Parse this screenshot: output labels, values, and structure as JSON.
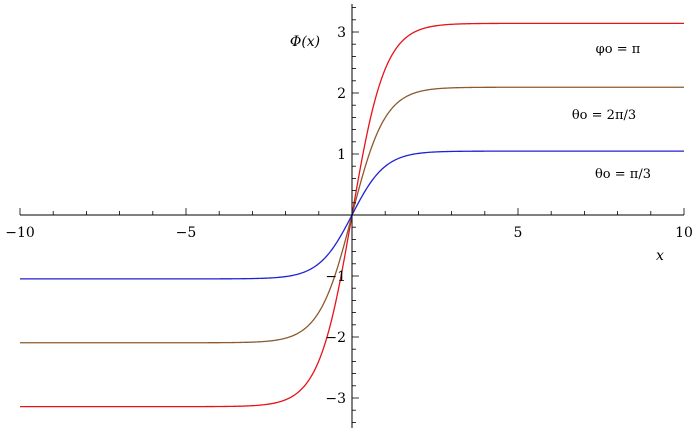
{
  "chart_data": {
    "type": "line",
    "title": "",
    "xlabel": "x",
    "ylabel": "Φ(x)",
    "xlim": [
      -10,
      10
    ],
    "ylim": [
      -3.5,
      3.5
    ],
    "x_ticks": [
      -10,
      -5,
      5,
      10
    ],
    "x_tick_labels": [
      "−10",
      "−5",
      "5",
      "10"
    ],
    "y_ticks": [
      -3,
      -2,
      -1,
      1,
      2,
      3
    ],
    "y_tick_labels": [
      "−3",
      "−2",
      "−1",
      "1",
      "2",
      "3"
    ],
    "grid": false,
    "legend": "none",
    "series": [
      {
        "name": "φo = π",
        "color": "#e8131a",
        "amplitude": 3.1416,
        "k": 1.0,
        "x": [
          -10,
          -3,
          -2,
          -1.5,
          -1,
          -0.5,
          0,
          0.5,
          1,
          1.5,
          2,
          3,
          10
        ],
        "y": [
          -3.14,
          -3.13,
          -3.09,
          -3.03,
          -2.86,
          -2.14,
          0,
          2.14,
          2.86,
          3.03,
          3.09,
          3.13,
          3.14
        ]
      },
      {
        "name": "θo = 2π/3",
        "color": "#8c5a2e",
        "amplitude": 2.0944,
        "k": 1.0,
        "x": [
          -10,
          -3,
          -2,
          -1,
          -0.5,
          0,
          0.5,
          1,
          2,
          3,
          10
        ],
        "y": [
          -2.09,
          -2.09,
          -2.06,
          -1.91,
          -1.43,
          0,
          1.43,
          1.91,
          2.06,
          2.09,
          2.09
        ]
      },
      {
        "name": "θo = π/3",
        "color": "#1f22d6",
        "amplitude": 1.0472,
        "k": 1.0,
        "x": [
          -10,
          -3,
          -2,
          -1,
          -0.5,
          0,
          0.5,
          1,
          2,
          3,
          10
        ],
        "y": [
          -1.05,
          -1.04,
          -1.03,
          -0.95,
          -0.71,
          0,
          0.71,
          0.95,
          1.03,
          1.04,
          1.05
        ]
      }
    ]
  }
}
